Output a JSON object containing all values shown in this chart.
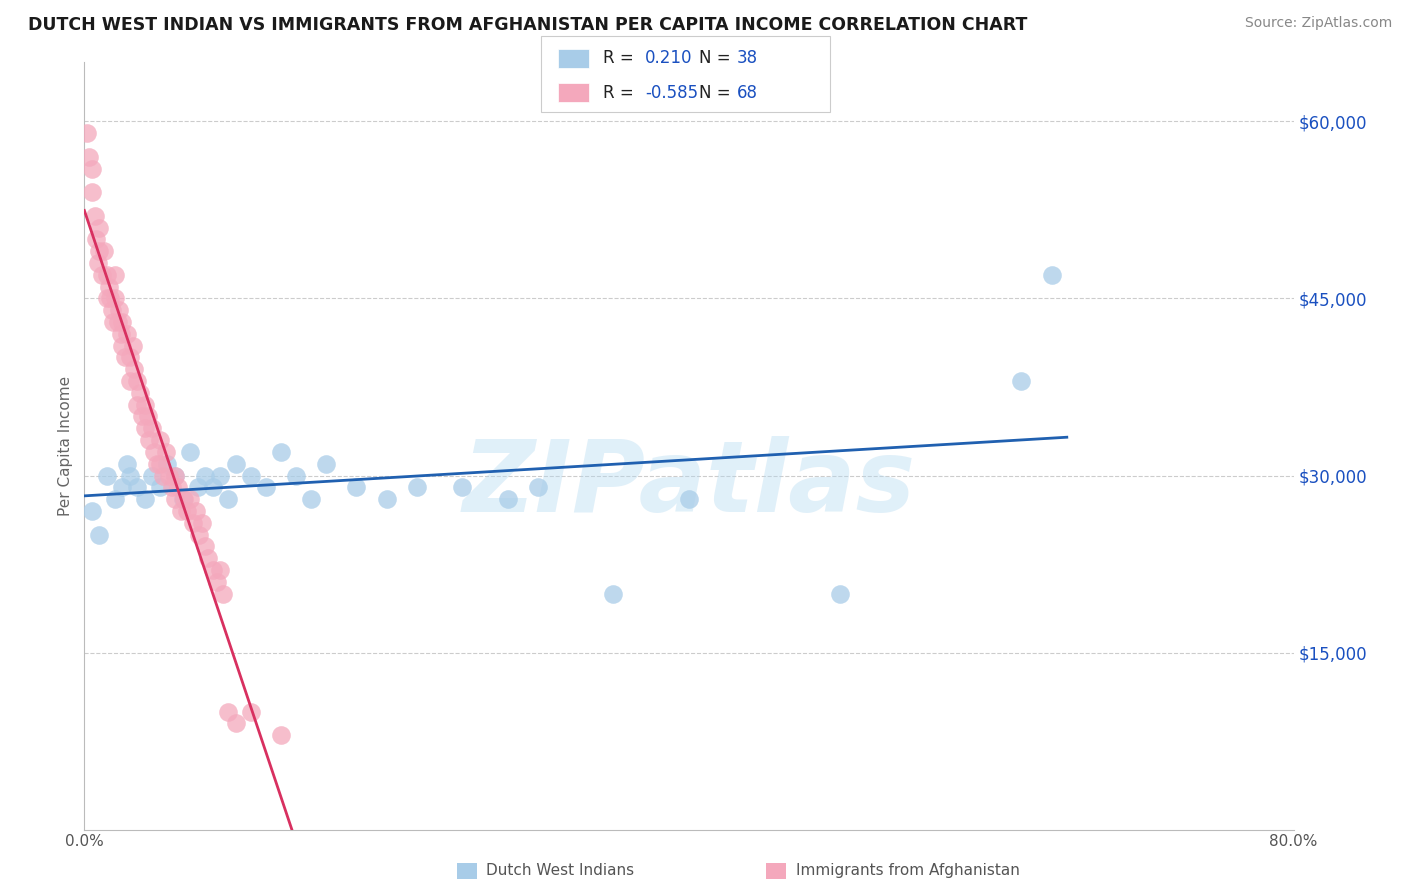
{
  "title": "DUTCH WEST INDIAN VS IMMIGRANTS FROM AFGHANISTAN PER CAPITA INCOME CORRELATION CHART",
  "source_text": "Source: ZipAtlas.com",
  "ylabel": "Per Capita Income",
  "watermark": "ZIPatlas",
  "xlim": [
    0.0,
    0.8
  ],
  "ylim": [
    0,
    65000
  ],
  "yticks": [
    15000,
    30000,
    45000,
    60000
  ],
  "ytick_labels": [
    "$15,000",
    "$30,000",
    "$45,000",
    "$60,000"
  ],
  "xtick_positions": [
    0.0,
    0.1,
    0.2,
    0.3,
    0.4,
    0.5,
    0.6,
    0.7,
    0.8
  ],
  "xtick_labels": [
    "0.0%",
    "",
    "",
    "",
    "",
    "",
    "",
    "",
    "80.0%"
  ],
  "blue_color": "#a8cce8",
  "pink_color": "#f4a8bc",
  "blue_line_color": "#2060b0",
  "pink_line_color": "#d83060",
  "r_label_color": "#1a50c0",
  "grid_color": "#cccccc",
  "background_color": "#ffffff",
  "title_color": "#1a1a1a",
  "source_color": "#888888",
  "blue_x": [
    0.005,
    0.01,
    0.015,
    0.02,
    0.025,
    0.028,
    0.03,
    0.035,
    0.04,
    0.045,
    0.05,
    0.055,
    0.06,
    0.065,
    0.07,
    0.075,
    0.08,
    0.085,
    0.09,
    0.095,
    0.1,
    0.11,
    0.12,
    0.13,
    0.14,
    0.15,
    0.16,
    0.18,
    0.2,
    0.22,
    0.25,
    0.28,
    0.3,
    0.35,
    0.4,
    0.5,
    0.62,
    0.64
  ],
  "blue_y": [
    27000,
    25000,
    30000,
    28000,
    29000,
    31000,
    30000,
    29000,
    28000,
    30000,
    29000,
    31000,
    30000,
    28000,
    32000,
    29000,
    30000,
    29000,
    30000,
    28000,
    31000,
    30000,
    29000,
    32000,
    30000,
    28000,
    31000,
    29000,
    28000,
    29000,
    29000,
    28000,
    29000,
    20000,
    28000,
    20000,
    38000,
    47000
  ],
  "pink_x": [
    0.002,
    0.003,
    0.005,
    0.005,
    0.007,
    0.008,
    0.009,
    0.01,
    0.01,
    0.012,
    0.013,
    0.015,
    0.015,
    0.016,
    0.017,
    0.018,
    0.019,
    0.02,
    0.02,
    0.022,
    0.023,
    0.024,
    0.025,
    0.025,
    0.027,
    0.028,
    0.03,
    0.03,
    0.032,
    0.033,
    0.035,
    0.035,
    0.037,
    0.038,
    0.04,
    0.04,
    0.042,
    0.043,
    0.045,
    0.046,
    0.048,
    0.05,
    0.05,
    0.052,
    0.054,
    0.056,
    0.058,
    0.06,
    0.06,
    0.062,
    0.064,
    0.066,
    0.068,
    0.07,
    0.072,
    0.074,
    0.076,
    0.078,
    0.08,
    0.082,
    0.085,
    0.088,
    0.09,
    0.092,
    0.095,
    0.1,
    0.11,
    0.13
  ],
  "pink_y": [
    59000,
    57000,
    56000,
    54000,
    52000,
    50000,
    48000,
    51000,
    49000,
    47000,
    49000,
    47000,
    45000,
    46000,
    45000,
    44000,
    43000,
    47000,
    45000,
    43000,
    44000,
    42000,
    41000,
    43000,
    40000,
    42000,
    40000,
    38000,
    41000,
    39000,
    38000,
    36000,
    37000,
    35000,
    36000,
    34000,
    35000,
    33000,
    34000,
    32000,
    31000,
    33000,
    31000,
    30000,
    32000,
    30000,
    29000,
    30000,
    28000,
    29000,
    27000,
    28000,
    27000,
    28000,
    26000,
    27000,
    25000,
    26000,
    24000,
    23000,
    22000,
    21000,
    22000,
    20000,
    10000,
    9000,
    10000,
    8000
  ]
}
